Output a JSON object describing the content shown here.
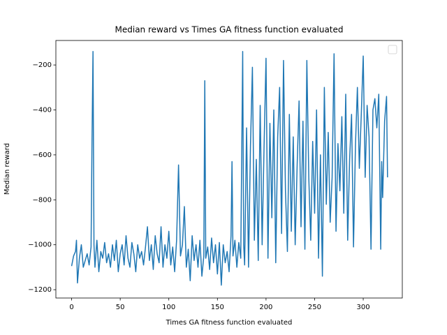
{
  "chart_data": {
    "type": "line",
    "title": "Median reward vs Times GA fitness function evaluated",
    "xlabel": "Times GA fitness function evaluated",
    "ylabel": "Median reward",
    "legend": "upper right",
    "xlim": [
      -16.2,
      340.2
    ],
    "ylim": [
      -1237,
      -91
    ],
    "xticks": [
      0,
      50,
      100,
      150,
      200,
      250,
      300
    ],
    "yticks": [
      {
        "value": -1200,
        "label": "−1200"
      },
      {
        "value": -1000,
        "label": "−1000"
      },
      {
        "value": -800,
        "label": "−800"
      },
      {
        "value": -600,
        "label": "−600"
      },
      {
        "value": -400,
        "label": "−400"
      },
      {
        "value": -200,
        "label": "−200"
      }
    ],
    "series": [
      {
        "color": "#1f77b4",
        "x": [
          0,
          2,
          4,
          5,
          6,
          8,
          10,
          12,
          14,
          16,
          18,
          20,
          21,
          22,
          23,
          24,
          26,
          28,
          30,
          32,
          34,
          36,
          38,
          40,
          42,
          44,
          46,
          48,
          50,
          52,
          54,
          56,
          58,
          60,
          62,
          64,
          66,
          68,
          70,
          72,
          74,
          76,
          78,
          80,
          82,
          84,
          86,
          88,
          90,
          92,
          94,
          96,
          98,
          100,
          102,
          104,
          106,
          108,
          110,
          112,
          114,
          116,
          118,
          120,
          122,
          124,
          126,
          128,
          130,
          132,
          134,
          136,
          137,
          138,
          140,
          142,
          144,
          146,
          148,
          150,
          152,
          154,
          156,
          158,
          160,
          162,
          164,
          165,
          166,
          168,
          170,
          172,
          174,
          176,
          177,
          178,
          180,
          182,
          184,
          186,
          188,
          190,
          192,
          194,
          196,
          198,
          200,
          202,
          204,
          206,
          208,
          210,
          212,
          214,
          216,
          218,
          220,
          222,
          224,
          226,
          228,
          230,
          232,
          234,
          236,
          238,
          240,
          242,
          244,
          246,
          248,
          250,
          252,
          254,
          256,
          258,
          260,
          262,
          264,
          266,
          268,
          270,
          272,
          274,
          276,
          278,
          280,
          282,
          284,
          286,
          288,
          290,
          292,
          294,
          296,
          298,
          300,
          302,
          304,
          306,
          308,
          310,
          312,
          314,
          316,
          318,
          319,
          320,
          322,
          324,
          325
        ],
        "values": [
          -1095,
          -1050,
          -1030,
          -980,
          -1170,
          -1060,
          -1000,
          -1100,
          -1070,
          -1040,
          -1090,
          -1010,
          -530,
          -140,
          -1000,
          -1100,
          -980,
          -1120,
          -1030,
          -1060,
          -990,
          -1080,
          -1040,
          -1100,
          -1000,
          -1070,
          -980,
          -1120,
          -1040,
          -1000,
          -1090,
          -960,
          -1060,
          -1100,
          -990,
          -1040,
          -1120,
          -1000,
          -1060,
          -1030,
          -1090,
          -1010,
          -920,
          -1070,
          -1000,
          -1110,
          -960,
          -1040,
          -1080,
          -920,
          -1100,
          -1000,
          -1060,
          -940,
          -1090,
          -1010,
          -1120,
          -980,
          -645,
          -1050,
          -1000,
          -830,
          -1100,
          -1020,
          -1160,
          -960,
          -1070,
          -1000,
          -1100,
          -980,
          -1140,
          -1050,
          -270,
          -1060,
          -1010,
          -1110,
          -970,
          -1080,
          -1000,
          -1130,
          -990,
          -1180,
          -1000,
          -1080,
          -1030,
          -1120,
          -960,
          -630,
          -1050,
          -980,
          -1100,
          -990,
          -1060,
          -140,
          -1000,
          -1090,
          -480,
          -1100,
          -560,
          -210,
          -980,
          -620,
          -1070,
          -380,
          -1000,
          -560,
          -170,
          -1060,
          -460,
          -880,
          -400,
          -1080,
          -520,
          -300,
          -950,
          -180,
          -760,
          -1030,
          -420,
          -940,
          -520,
          -1000,
          -650,
          -360,
          -920,
          -450,
          -1020,
          -180,
          -700,
          -980,
          -540,
          -860,
          -400,
          -1060,
          -600,
          -1140,
          -300,
          -820,
          -500,
          -900,
          -700,
          -150,
          -940,
          -550,
          -760,
          -430,
          -860,
          -330,
          -980,
          -620,
          -420,
          -1010,
          -560,
          -300,
          -660,
          -420,
          -160,
          -700,
          -380,
          -520,
          -1020,
          -400,
          -350,
          -480,
          -330,
          -1020,
          -630,
          -790,
          -450,
          -340,
          -700
        ]
      }
    ]
  }
}
